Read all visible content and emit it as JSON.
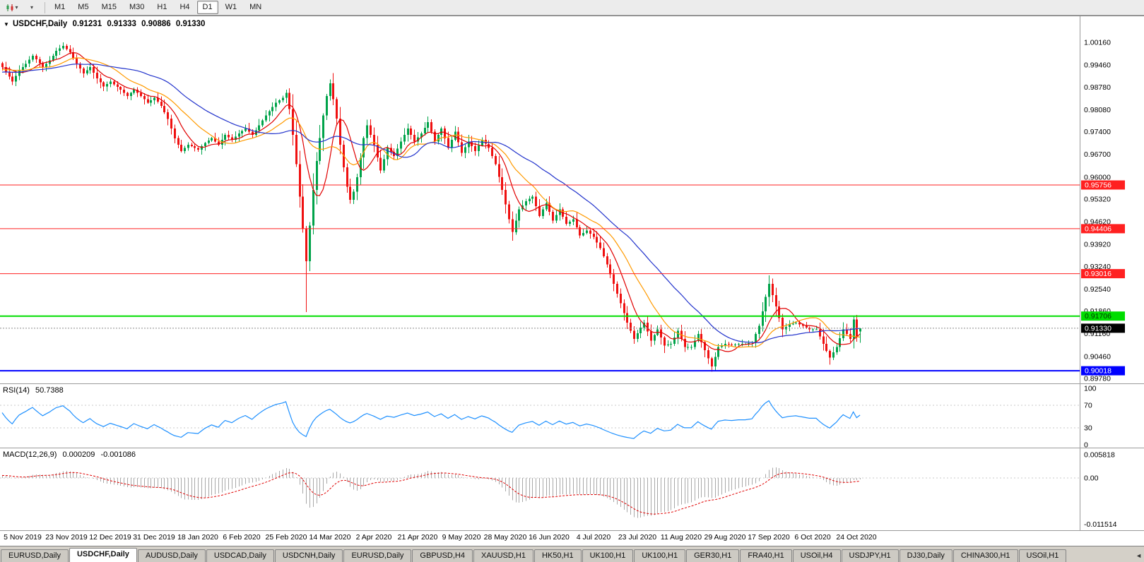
{
  "toolbar": {
    "icons": [
      "candlestick-chart-icon",
      "dropdown-arrow-icon",
      "one-click-trading-icon",
      "tab-scroll-left-icon"
    ],
    "timeframes": [
      "M1",
      "M5",
      "M15",
      "M30",
      "H1",
      "H4",
      "D1",
      "W1",
      "MN"
    ],
    "active_timeframe": "D1",
    "dropdown_glyph": "▾"
  },
  "chart": {
    "symbol_label": "USDCHF,Daily",
    "quote": {
      "open": "0.91231",
      "high": "0.91333",
      "low": "0.90886",
      "close": "0.91330"
    },
    "one_click_glyph": "▼",
    "price_axis_ticks": [
      "1.00160",
      "0.99460",
      "0.98780",
      "0.98080",
      "0.97400",
      "0.96700",
      "0.96000",
      "0.95320",
      "0.94620",
      "0.93920",
      "0.93240",
      "0.92540",
      "0.91860",
      "0.91160",
      "0.90460",
      "0.89780"
    ],
    "date_axis_labels": [
      "5 Nov 2019",
      "23 Nov 2019",
      "12 Dec 2019",
      "31 Dec 2019",
      "18 Jan 2020",
      "6 Feb 2020",
      "25 Feb 2020",
      "14 Mar 2020",
      "2 Apr 2020",
      "21 Apr 2020",
      "9 May 2020",
      "28 May 2020",
      "16 Jun 2020",
      "4 Jul 2020",
      "23 Jul 2020",
      "11 Aug 2020",
      "29 Aug 2020",
      "17 Sep 2020",
      "6 Oct 2020",
      "24 Oct 2020"
    ],
    "hlines": [
      {
        "price": 0.95756,
        "label": "0.95756",
        "color": "#ff2020",
        "width": 1,
        "text_color": "#ffffff"
      },
      {
        "price": 0.94406,
        "label": "0.94406",
        "color": "#ff2020",
        "width": 1,
        "text_color": "#ffffff"
      },
      {
        "price": 0.93016,
        "label": "0.93016",
        "color": "#ff2020",
        "width": 1,
        "text_color": "#ffffff"
      },
      {
        "price": 0.91706,
        "label": "0.91706",
        "color": "#00dd00",
        "width": 2,
        "text_color": "#003300"
      },
      {
        "price": 0.90018,
        "label": "0.90018",
        "color": "#0000ff",
        "width": 2,
        "text_color": "#ffffff"
      }
    ],
    "current_price": {
      "value": 0.9133,
      "label": "0.91330",
      "badge_color": "#000000",
      "text_color": "#ffffff"
    }
  },
  "indicators": {
    "rsi": {
      "name": "RSI(14)",
      "value": "50.7388",
      "period": 14,
      "color": "#1e90ff",
      "levels": [
        70,
        30
      ],
      "ticks": [
        {
          "label": "100",
          "value": 100
        },
        {
          "label": "70",
          "value": 70
        },
        {
          "label": "30",
          "value": 30
        },
        {
          "label": "0",
          "value": 0
        }
      ]
    },
    "macd": {
      "name": "MACD(12,26,9)",
      "value_main": "0.000209",
      "value_signal": "-0.001086",
      "fast": 12,
      "slow": 26,
      "signal": 9,
      "hist_color": "#a8a8a8",
      "signal_color": "#e00000",
      "ticks": [
        {
          "label": "0.005818",
          "value": 0.005818
        },
        {
          "label": "0.00",
          "value": 0
        },
        {
          "label": "-0.011514",
          "value": -0.011514
        }
      ]
    }
  },
  "chart_data": {
    "type": "candlestick",
    "symbol": "USDCHF",
    "timeframe": "Daily",
    "ohlc_current": {
      "open": 0.91231,
      "high": 0.91333,
      "low": 0.90886,
      "close": 0.9133
    },
    "price_range": {
      "top": 1.0016,
      "bottom": 0.8978
    },
    "bars_visible": 255,
    "x_label_bars": [
      6,
      19,
      32,
      45,
      58,
      71,
      84,
      97,
      110,
      123,
      136,
      149,
      162,
      175,
      188,
      201,
      214,
      227,
      240,
      253
    ],
    "close_keypoints": [
      [
        0,
        0.994
      ],
      [
        3,
        0.9895
      ],
      [
        5,
        0.993
      ],
      [
        7,
        0.995
      ],
      [
        9,
        0.9975
      ],
      [
        12,
        0.994
      ],
      [
        14,
        0.996
      ],
      [
        16,
        0.999
      ],
      [
        18,
        1.0005
      ],
      [
        20,
        0.9985
      ],
      [
        22,
        0.995
      ],
      [
        24,
        0.992
      ],
      [
        26,
        0.994
      ],
      [
        28,
        0.9905
      ],
      [
        30,
        0.988
      ],
      [
        32,
        0.9895
      ],
      [
        35,
        0.987
      ],
      [
        37,
        0.985
      ],
      [
        39,
        0.987
      ],
      [
        41,
        0.985
      ],
      [
        43,
        0.983
      ],
      [
        45,
        0.9845
      ],
      [
        47,
        0.982
      ],
      [
        49,
        0.978
      ],
      [
        51,
        0.972
      ],
      [
        53,
        0.968
      ],
      [
        55,
        0.97
      ],
      [
        58,
        0.9685
      ],
      [
        60,
        0.9705
      ],
      [
        62,
        0.972
      ],
      [
        64,
        0.97
      ],
      [
        66,
        0.973
      ],
      [
        68,
        0.9715
      ],
      [
        70,
        0.9735
      ],
      [
        72,
        0.975
      ],
      [
        74,
        0.973
      ],
      [
        76,
        0.976
      ],
      [
        78,
        0.979
      ],
      [
        81,
        0.983
      ],
      [
        83,
        0.9845
      ],
      [
        84,
        0.986
      ],
      [
        85,
        0.981
      ],
      [
        86,
        0.973
      ],
      [
        87,
        0.964
      ],
      [
        88,
        0.954
      ],
      [
        89,
        0.944
      ],
      [
        90,
        0.934
      ],
      [
        91,
        0.945
      ],
      [
        92,
        0.956
      ],
      [
        93,
        0.965
      ],
      [
        94,
        0.972
      ],
      [
        95,
        0.979
      ],
      [
        96,
        0.985
      ],
      [
        97,
        0.989
      ],
      [
        98,
        0.984
      ],
      [
        99,
        0.978
      ],
      [
        100,
        0.97
      ],
      [
        101,
        0.963
      ],
      [
        102,
        0.957
      ],
      [
        103,
        0.953
      ],
      [
        104,
        0.9555
      ],
      [
        105,
        0.96
      ],
      [
        106,
        0.966
      ],
      [
        107,
        0.972
      ],
      [
        108,
        0.976
      ],
      [
        110,
        0.97
      ],
      [
        112,
        0.962
      ],
      [
        114,
        0.969
      ],
      [
        116,
        0.9665
      ],
      [
        118,
        0.971
      ],
      [
        120,
        0.975
      ],
      [
        122,
        0.971
      ],
      [
        124,
        0.9735
      ],
      [
        126,
        0.977
      ],
      [
        128,
        0.971
      ],
      [
        130,
        0.975
      ],
      [
        132,
        0.969
      ],
      [
        134,
        0.974
      ],
      [
        136,
        0.9675
      ],
      [
        138,
        0.971
      ],
      [
        140,
        0.968
      ],
      [
        142,
        0.9715
      ],
      [
        144,
        0.969
      ],
      [
        146,
        0.964
      ],
      [
        148,
        0.956
      ],
      [
        150,
        0.947
      ],
      [
        151,
        0.943
      ],
      [
        153,
        0.95
      ],
      [
        155,
        0.9525
      ],
      [
        157,
        0.954
      ],
      [
        159,
        0.948
      ],
      [
        161,
        0.952
      ],
      [
        163,
        0.9465
      ],
      [
        165,
        0.95
      ],
      [
        167,
        0.9455
      ],
      [
        169,
        0.947
      ],
      [
        171,
        0.942
      ],
      [
        173,
        0.9435
      ],
      [
        175,
        0.9415
      ],
      [
        177,
        0.938
      ],
      [
        179,
        0.933
      ],
      [
        181,
        0.927
      ],
      [
        183,
        0.921
      ],
      [
        185,
        0.915
      ],
      [
        187,
        0.91
      ],
      [
        189,
        0.9135
      ],
      [
        190,
        0.915
      ],
      [
        192,
        0.9095
      ],
      [
        194,
        0.913
      ],
      [
        196,
        0.908
      ],
      [
        198,
        0.9085
      ],
      [
        200,
        0.9125
      ],
      [
        202,
        0.9075
      ],
      [
        204,
        0.9075
      ],
      [
        206,
        0.9115
      ],
      [
        208,
        0.9065
      ],
      [
        210,
        0.9015
      ],
      [
        212,
        0.9075
      ],
      [
        214,
        0.9085
      ],
      [
        216,
        0.908
      ],
      [
        218,
        0.9085
      ],
      [
        220,
        0.9085
      ],
      [
        222,
        0.909
      ],
      [
        224,
        0.914
      ],
      [
        226,
        0.923
      ],
      [
        227,
        0.927
      ],
      [
        229,
        0.92
      ],
      [
        231,
        0.913
      ],
      [
        233,
        0.9145
      ],
      [
        235,
        0.915
      ],
      [
        237,
        0.914
      ],
      [
        239,
        0.913
      ],
      [
        241,
        0.913
      ],
      [
        243,
        0.9085
      ],
      [
        245,
        0.9042
      ],
      [
        247,
        0.9075
      ],
      [
        249,
        0.913
      ],
      [
        251,
        0.91
      ],
      [
        252,
        0.916
      ],
      [
        253,
        0.9105
      ],
      [
        254,
        0.9133
      ]
    ],
    "overrides": {
      "18": {
        "h": 1.0016
      },
      "84": {
        "h": 0.987
      },
      "90": {
        "l": 0.9183
      },
      "97": {
        "h": 0.9901
      },
      "210": {
        "l": 0.8999
      },
      "227": {
        "h": 0.9296
      },
      "252": {
        "h": 0.9172
      },
      "254": {
        "o": 0.91231,
        "h": 0.91333,
        "l": 0.90886,
        "c": 0.9133
      }
    },
    "moving_averages": [
      {
        "period": 8,
        "color": "#e00000"
      },
      {
        "period": 17,
        "color": "#ff9a00"
      },
      {
        "period": 34,
        "color": "#2233cc"
      }
    ],
    "style": {
      "up": "#00a34a",
      "down": "#ef1010",
      "current_price_line": "#8a8a8a"
    }
  },
  "tabs": {
    "items": [
      {
        "label": "EURUSD,Daily"
      },
      {
        "label": "USDCHF,Daily"
      },
      {
        "label": "AUDUSD,Daily"
      },
      {
        "label": "USDCAD,Daily"
      },
      {
        "label": "USDCNH,Daily"
      },
      {
        "label": "EURUSD,Daily"
      },
      {
        "label": "GBPUSD,H4"
      },
      {
        "label": "XAUUSD,H1"
      },
      {
        "label": "HK50,H1"
      },
      {
        "label": "UK100,H1"
      },
      {
        "label": "UK100,H1"
      },
      {
        "label": "GER30,H1"
      },
      {
        "label": "FRA40,H1"
      },
      {
        "label": "USOil,H4"
      },
      {
        "label": "USDJPY,H1"
      },
      {
        "label": "DJ30,Daily"
      },
      {
        "label": "CHINA300,H1"
      },
      {
        "label": "USOil,H1"
      }
    ],
    "active_index": 1,
    "scroll_icon": "◄"
  }
}
